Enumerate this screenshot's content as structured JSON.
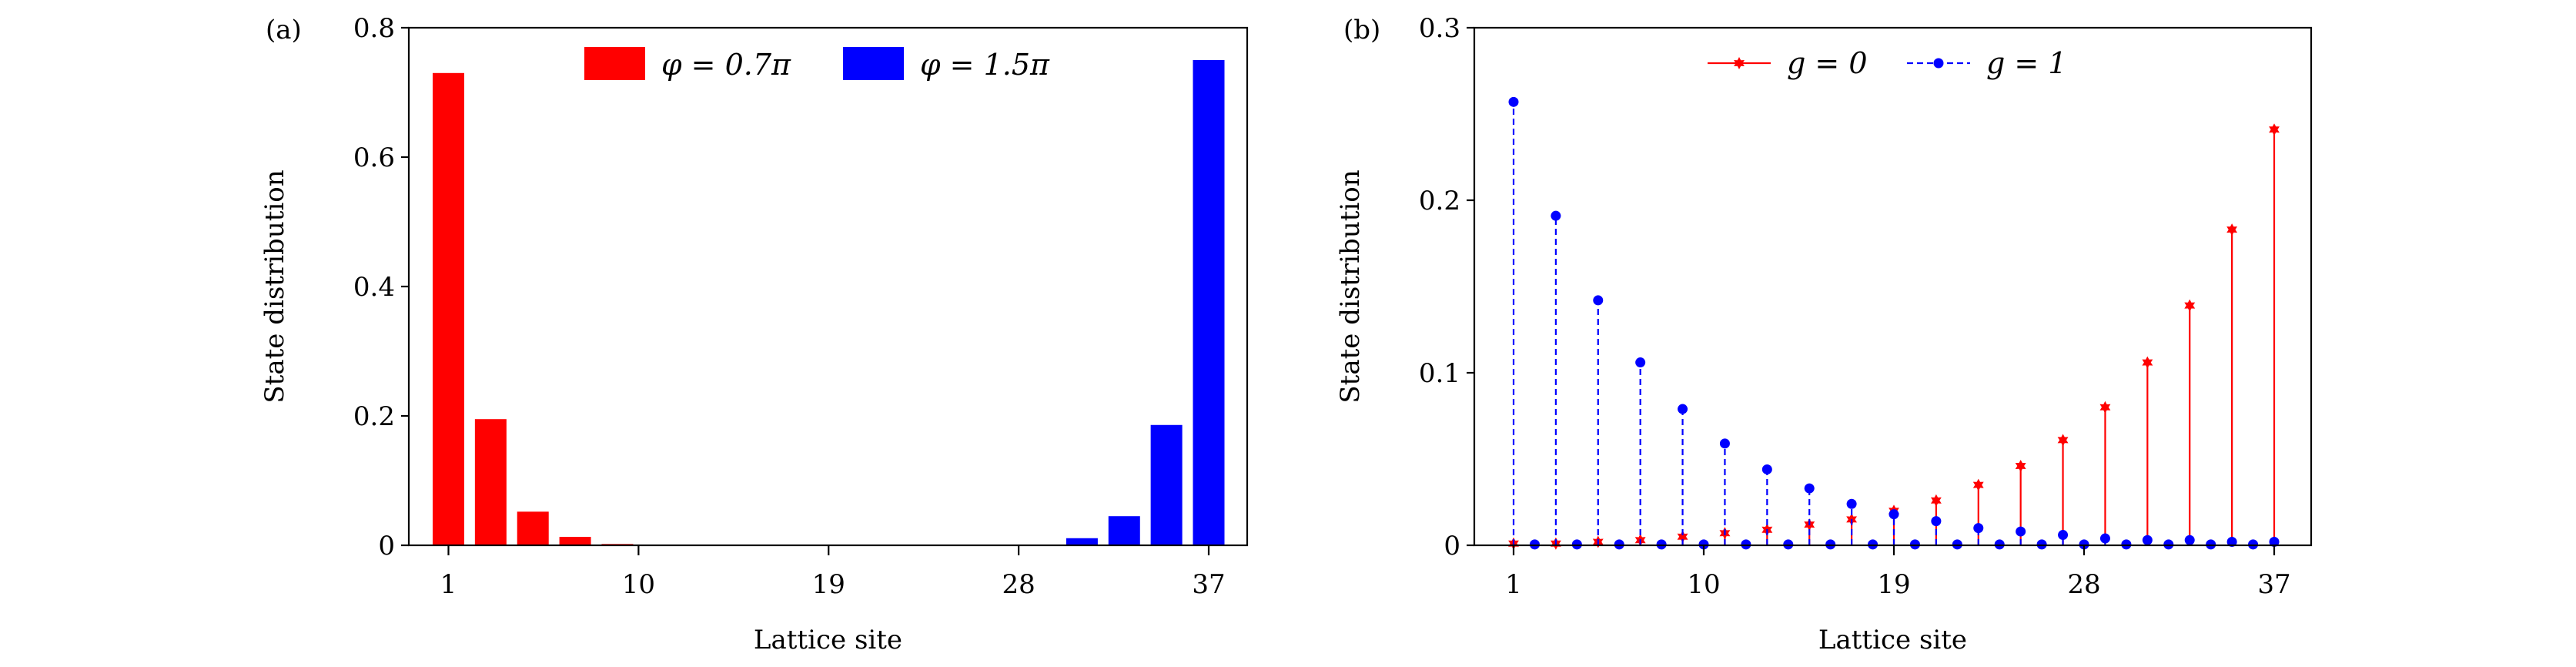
{
  "chart_data": [
    {
      "type": "bar",
      "panel_label": "(a)",
      "xlabel": "Lattice site",
      "ylabel": "State distribution",
      "xlim": [
        -1,
        39
      ],
      "ylim": [
        0,
        0.8
      ],
      "xticks": [
        1,
        10,
        19,
        28,
        37
      ],
      "yticks": [
        0,
        0.2,
        0.4,
        0.6,
        0.8
      ],
      "ytick_labels": [
        "0",
        "0.2",
        "0.4",
        "0.6",
        "0.8"
      ],
      "legend_placement": "top-center",
      "series": [
        {
          "name": "φ = 0.7π",
          "color": "#ff0000",
          "x": [
            1,
            3,
            5,
            7,
            9
          ],
          "values": [
            0.73,
            0.195,
            0.052,
            0.013,
            0.002
          ]
        },
        {
          "name": "φ = 1.5π",
          "color": "#0000ff",
          "x": [
            29,
            31,
            33,
            35,
            37
          ],
          "values": [
            0.001,
            0.011,
            0.045,
            0.186,
            0.75
          ]
        }
      ]
    },
    {
      "type": "stem",
      "panel_label": "(b)",
      "xlabel": "Lattice site",
      "ylabel": "State distribution",
      "xlim": [
        -0.5,
        39.1
      ],
      "ylim": [
        0,
        0.3
      ],
      "xticks": [
        1,
        10,
        19,
        28,
        37
      ],
      "yticks": [
        0,
        0.1,
        0.2,
        0.3
      ],
      "ytick_labels": [
        "0",
        "0.1",
        "0.2",
        "0.3"
      ],
      "legend_placement": "top-center",
      "series": [
        {
          "name": "g = 0",
          "color": "#ff0000",
          "line": "solid",
          "marker": "star",
          "x": [
            1,
            3,
            5,
            7,
            9,
            11,
            13,
            15,
            17,
            19,
            21,
            23,
            25,
            27,
            29,
            31,
            33,
            35,
            37
          ],
          "values": [
            0.001,
            0.001,
            0.002,
            0.003,
            0.005,
            0.007,
            0.009,
            0.012,
            0.015,
            0.02,
            0.026,
            0.035,
            0.046,
            0.061,
            0.08,
            0.106,
            0.139,
            0.183,
            0.241
          ]
        },
        {
          "name": "g = 1",
          "color": "#0000ff",
          "line": "dashed",
          "marker": "circle",
          "x": [
            1,
            2,
            3,
            4,
            5,
            6,
            7,
            8,
            9,
            10,
            11,
            12,
            13,
            14,
            15,
            16,
            17,
            18,
            19,
            20,
            21,
            22,
            23,
            24,
            25,
            26,
            27,
            28,
            29,
            30,
            31,
            32,
            33,
            34,
            35,
            36,
            37
          ],
          "values": [
            0.257,
            0.0005,
            0.191,
            0.0005,
            0.142,
            0.0005,
            0.106,
            0.0005,
            0.079,
            0.0005,
            0.059,
            0.0005,
            0.044,
            0.0005,
            0.033,
            0.0005,
            0.024,
            0.0005,
            0.018,
            0.0005,
            0.014,
            0.0005,
            0.01,
            0.0005,
            0.008,
            0.0005,
            0.006,
            0.0005,
            0.004,
            0.0005,
            0.003,
            0.0005,
            0.003,
            0.0005,
            0.002,
            0.0005,
            0.002
          ]
        }
      ]
    }
  ]
}
